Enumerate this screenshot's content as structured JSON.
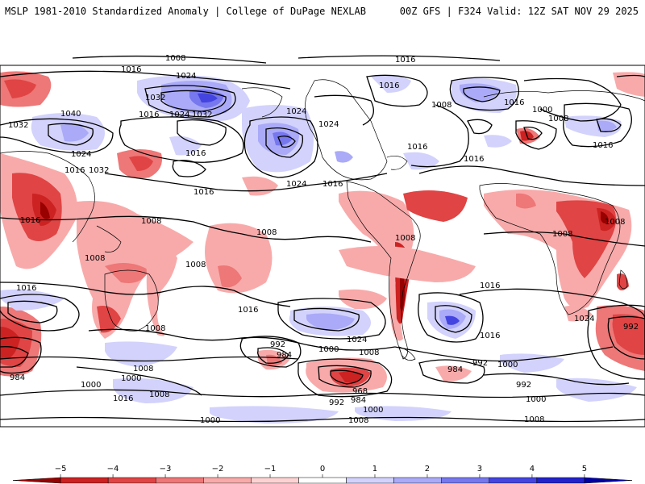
{
  "header": {
    "title": "MSLP 1981-2010 Standardized Anomaly | College of DuPage NEXLAB",
    "run_info": "00Z GFS | F324 Valid: 12Z SAT NOV 29 2025"
  },
  "contour_labels": [
    "1008",
    "1016",
    "1016",
    "1024",
    "1032",
    "1024",
    "1032",
    "1016",
    "1032",
    "1040",
    "1024",
    "1016",
    "1032",
    "1024",
    "1016",
    "1016",
    "1024",
    "1016",
    "1016",
    "1024",
    "1008",
    "1000",
    "1008",
    "1016",
    "1016",
    "1016",
    "1016",
    "1008",
    "1016",
    "1008",
    "1008",
    "1008",
    "1008",
    "1008",
    "1008",
    "1016",
    "1016",
    "1016",
    "1024",
    "1024",
    "1016",
    "992",
    "984",
    "1008",
    "1000",
    "1008",
    "984",
    "1000",
    "1000",
    "1016",
    "1008",
    "1008",
    "1000",
    "968",
    "984",
    "992",
    "984",
    "992",
    "1000",
    "992",
    "1000",
    "1008",
    "1008",
    "1000",
    "992"
  ],
  "colorbar": {
    "ticks": [
      "−5",
      "−4",
      "−3",
      "−2",
      "−1",
      "0",
      "1",
      "2",
      "3",
      "4",
      "5"
    ],
    "colors": [
      "#990000",
      "#cc2222",
      "#e04444",
      "#ee7777",
      "#f8aaaa",
      "#fcd2d2",
      "#ffffff",
      "#d2d2fc",
      "#aaaaf8",
      "#7777ee",
      "#4444e0",
      "#2222cc",
      "#0000aa"
    ]
  }
}
